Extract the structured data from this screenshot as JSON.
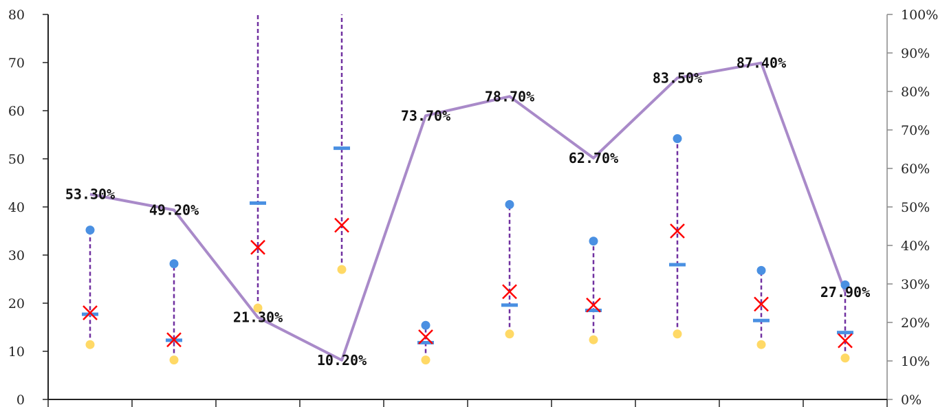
{
  "chart_data": {
    "type": "line",
    "categories": [
      "",
      "",
      "",
      "",
      "",
      "",
      "",
      "…",
      "…",
      "…"
    ],
    "left_axis": {
      "ylim": [
        0,
        80
      ],
      "ticks": [
        "0",
        "10",
        "20",
        "30",
        "40",
        "50",
        "60",
        "70",
        "80"
      ]
    },
    "right_axis": {
      "ylim": [
        0,
        100
      ],
      "ticks": [
        "0%",
        "10%",
        "20%",
        "30%",
        "40%",
        "50%",
        "60%",
        "70%",
        "80%",
        "90%",
        "100%"
      ]
    },
    "line_series": {
      "axis": "right",
      "color": "#a98ac9",
      "values": [
        53.3,
        49.2,
        21.3,
        10.2,
        73.7,
        78.7,
        62.7,
        83.5,
        87.4,
        27.9
      ],
      "labels": [
        "53.30%",
        "49.20%",
        "21.30%",
        "10.20%",
        "73.70%",
        "78.70%",
        "62.70%",
        "83.50%",
        "87.40%",
        "27.90%"
      ]
    },
    "range_series": {
      "axis": "left",
      "high": [
        35.2,
        28.2,
        80,
        80,
        15.4,
        40.5,
        32.9,
        54.2,
        26.8,
        23.8
      ],
      "high_markers_visible": [
        true,
        true,
        false,
        false,
        true,
        true,
        true,
        true,
        true,
        true
      ],
      "low": [
        11.4,
        8.2,
        19.0,
        27.0,
        8.2,
        13.6,
        12.4,
        13.6,
        11.4,
        8.6
      ],
      "mean": [
        18.0,
        12.4,
        31.6,
        36.2,
        13.0,
        22.4,
        19.6,
        35.0,
        19.8,
        12.2
      ],
      "median": [
        17.7,
        12.3,
        40.8,
        52.2,
        11.8,
        19.6,
        18.5,
        28.0,
        16.4,
        13.9
      ],
      "colors": {
        "high": "#4a90e2",
        "low": "#ffd966",
        "mean": "#ff0000",
        "median": "#4a90e2",
        "whisker": "#7030a0"
      }
    }
  }
}
